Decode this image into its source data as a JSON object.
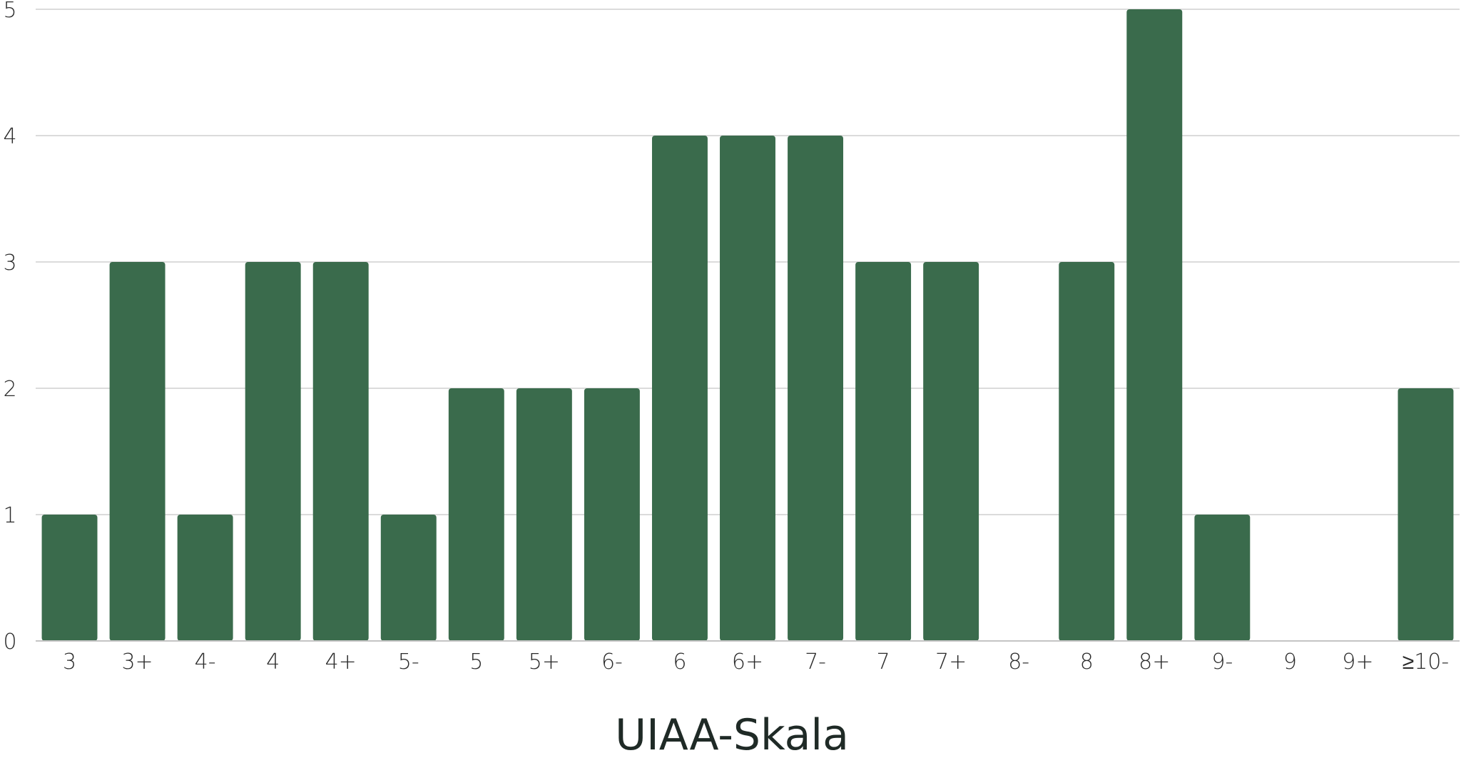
{
  "chart_data": {
    "type": "bar",
    "title": "",
    "xlabel": "UIAA-Skala",
    "ylabel": "",
    "categories": [
      "3",
      "3+",
      "4-",
      "4",
      "4+",
      "5-",
      "5",
      "5+",
      "6-",
      "6",
      "6+",
      "7-",
      "7",
      "7+",
      "8-",
      "8",
      "8+",
      "9-",
      "9",
      "9+",
      "≥10-"
    ],
    "values": [
      1,
      3,
      1,
      3,
      3,
      1,
      2,
      2,
      2,
      4,
      4,
      4,
      3,
      3,
      0,
      3,
      5,
      1,
      0,
      0,
      2
    ],
    "ylim": [
      0,
      5
    ],
    "yticks": [
      "0",
      "1",
      "2",
      "3",
      "4",
      "5"
    ],
    "grid": true,
    "legend": "none",
    "bar_color": "#3a6b4c"
  }
}
